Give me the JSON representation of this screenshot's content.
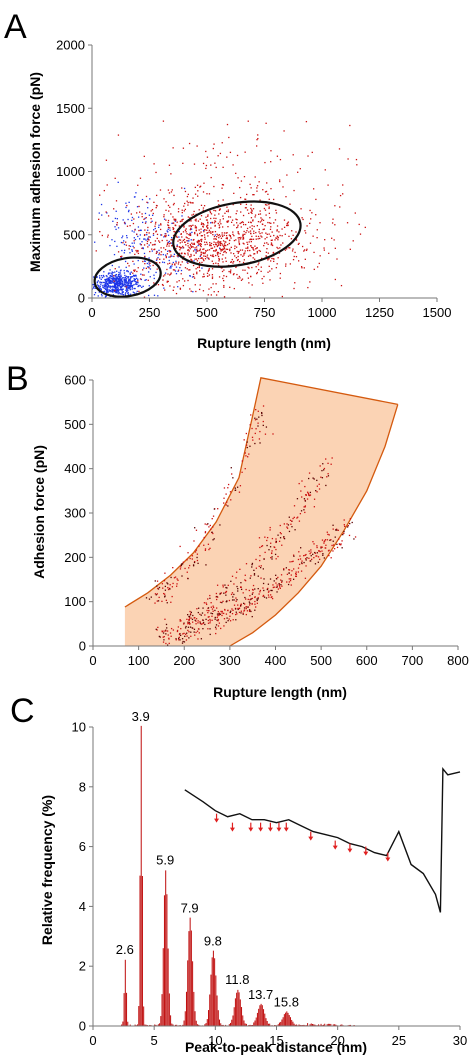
{
  "figure": {
    "panel_labels": [
      "A",
      "B",
      "C"
    ],
    "colors": {
      "series_red": "#cc1111",
      "series_blue": "#1d35e8",
      "band_fill": "#fbd3b4",
      "band_edge": "#d45a0f",
      "bar_fill": "#c01010",
      "annotation_arrow": "#e02020",
      "ellipse": "#111111",
      "inset_line": "#111111"
    }
  },
  "chart_data": [
    {
      "id": "A",
      "type": "scatter",
      "xlabel": "Rupture length (nm)",
      "ylabel": "Maximum adhesion force (pN)",
      "xlim": [
        0,
        1500
      ],
      "ylim": [
        0,
        2000
      ],
      "xticks": [
        0,
        250,
        500,
        750,
        1000,
        1250,
        1500
      ],
      "yticks": [
        0,
        500,
        1000,
        1500,
        2000
      ],
      "series": [
        {
          "color": "red",
          "clusters": [
            {
              "cx": 520,
              "cy": 430,
              "sx": 150,
              "sy": 170,
              "n": 650
            },
            {
              "cx": 560,
              "cy": 700,
              "sx": 280,
              "sy": 330,
              "n": 330
            },
            {
              "cx": 780,
              "cy": 420,
              "sx": 160,
              "sy": 160,
              "n": 150
            },
            {
              "cx": 320,
              "cy": 360,
              "sx": 120,
              "sy": 170,
              "n": 160
            }
          ]
        },
        {
          "color": "blue",
          "clusters": [
            {
              "cx": 110,
              "cy": 110,
              "sx": 50,
              "sy": 45,
              "n": 520
            },
            {
              "cx": 200,
              "cy": 420,
              "sx": 100,
              "sy": 220,
              "n": 160
            },
            {
              "cx": 340,
              "cy": 380,
              "sx": 90,
              "sy": 150,
              "n": 70
            }
          ]
        }
      ],
      "annotations": [
        {
          "type": "ellipse",
          "cx": 155,
          "cy": 165,
          "rx": 145,
          "ry": 150
        },
        {
          "type": "ellipse",
          "cx": 630,
          "cy": 505,
          "rx": 280,
          "ry": 245
        }
      ]
    },
    {
      "id": "B",
      "type": "scatter",
      "xlabel": "Rupture length (nm)",
      "ylabel": "Adhesion force (pN)",
      "xlim": [
        0,
        800
      ],
      "ylim": [
        0,
        600
      ],
      "xticks": [
        0,
        100,
        200,
        300,
        400,
        500,
        600,
        700,
        800
      ],
      "yticks": [
        0,
        100,
        200,
        300,
        400,
        500,
        600
      ],
      "band": {
        "upper_edge": [
          [
            70,
            88
          ],
          [
            120,
            120
          ],
          [
            170,
            160
          ],
          [
            220,
            210
          ],
          [
            270,
            280
          ],
          [
            320,
            380
          ],
          [
            350,
            520
          ],
          [
            368,
            605
          ]
        ],
        "lower_edge": [
          [
            300,
            0
          ],
          [
            350,
            30
          ],
          [
            400,
            70
          ],
          [
            450,
            120
          ],
          [
            500,
            180
          ],
          [
            550,
            260
          ],
          [
            600,
            350
          ],
          [
            640,
            450
          ],
          [
            668,
            545
          ]
        ],
        "top_edge": [
          [
            368,
            605
          ],
          [
            668,
            545
          ]
        ],
        "left_bottom": [
          [
            70,
            88
          ],
          [
            70,
            0
          ],
          [
            300,
            0
          ]
        ]
      },
      "series": [
        {
          "color": "dark-red",
          "traces": [
            {
              "x0": 150,
              "y0": 20,
              "x1": 560,
              "y1": 270,
              "n": 420
            },
            {
              "x0": 200,
              "y0": 60,
              "x1": 520,
              "y1": 420,
              "n": 240
            },
            {
              "x0": 130,
              "y0": 110,
              "x1": 380,
              "y1": 540,
              "n": 170
            }
          ]
        }
      ]
    },
    {
      "id": "C",
      "type": "bar",
      "xlabel": "Peak-to-peak distance (nm)",
      "ylabel": "Relative frequency (%)",
      "xlim": [
        0,
        30
      ],
      "ylim": [
        0,
        10
      ],
      "xticks": [
        0,
        5,
        10,
        15,
        20,
        25,
        30
      ],
      "yticks": [
        0,
        2,
        4,
        6,
        8,
        10
      ],
      "peaks": [
        {
          "x": 2.6,
          "value": 2.2,
          "label": "2.6"
        },
        {
          "x": 3.9,
          "value": 10.0,
          "label": "3.9"
        },
        {
          "x": 5.9,
          "value": 5.2,
          "label": "5.9"
        },
        {
          "x": 7.9,
          "value": 3.6,
          "label": "7.9"
        },
        {
          "x": 9.8,
          "value": 2.5,
          "label": "9.8"
        },
        {
          "x": 11.8,
          "value": 1.2,
          "label": "11.8"
        },
        {
          "x": 13.7,
          "value": 0.7,
          "label": "13.7"
        },
        {
          "x": 15.8,
          "value": 0.45,
          "label": "15.8"
        }
      ],
      "inset": {
        "type": "line",
        "description_units": "same axes as panel",
        "x": [
          7.5,
          9,
          10,
          11,
          12,
          13,
          14,
          15,
          16,
          17,
          18,
          19,
          20,
          21,
          22,
          23,
          24,
          25,
          26,
          27,
          28,
          28.4,
          28.6,
          29,
          30
        ],
        "y": [
          7.9,
          7.5,
          7.2,
          7.0,
          7.1,
          6.9,
          6.9,
          6.8,
          6.9,
          6.7,
          6.5,
          6.4,
          6.3,
          6.1,
          6.0,
          5.8,
          5.7,
          6.5,
          5.4,
          5.1,
          4.4,
          3.8,
          8.6,
          8.4,
          8.5
        ],
        "markers_x": [
          10.1,
          11.4,
          12.9,
          13.7,
          14.5,
          15.2,
          15.8,
          17.8,
          19.8,
          21.0,
          22.3,
          24.1
        ],
        "markers_y": [
          6.8,
          6.5,
          6.5,
          6.5,
          6.5,
          6.5,
          6.5,
          6.2,
          5.9,
          5.8,
          5.7,
          5.5
        ]
      }
    }
  ]
}
